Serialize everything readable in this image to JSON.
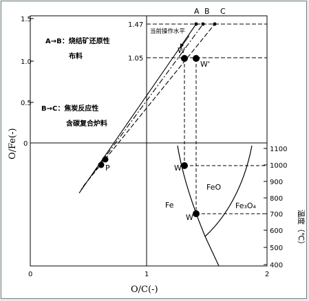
{
  "diagram": {
    "y_axis_label": "O/Fe(-)",
    "x_axis_label": "O/C(-)",
    "right_axis_label": "温度（℃）",
    "y_ticks": [
      "1.5",
      "1.0",
      "0.5",
      "0"
    ],
    "x_ticks": [
      "0",
      "1",
      "2"
    ],
    "temp_ticks": [
      "1100",
      "1000",
      "900",
      "800",
      "700",
      "600",
      "500",
      "400"
    ],
    "ref_values": [
      "1.47",
      "1.05"
    ],
    "line_labels": [
      "A",
      "B",
      "C"
    ],
    "note_ab_1": "A→B：烧结矿还原性",
    "note_ab_2": "布料",
    "note_bc_1": "B→C：焦炭反应性",
    "note_bc_2": "含碳复合炉料",
    "annotation_current": "当前操作水平",
    "point_w": "W",
    "point_w_prime": "W'",
    "point_p": "P",
    "phase_feo": "FeO",
    "phase_fe": "Fe",
    "phase_fe3o4": "Fe₃O₄",
    "point_w_lower1": "W",
    "point_w_lower2": "W"
  },
  "colors": {
    "line": "#000000",
    "frame": "#6e7f7f",
    "background": "#ffffff"
  }
}
